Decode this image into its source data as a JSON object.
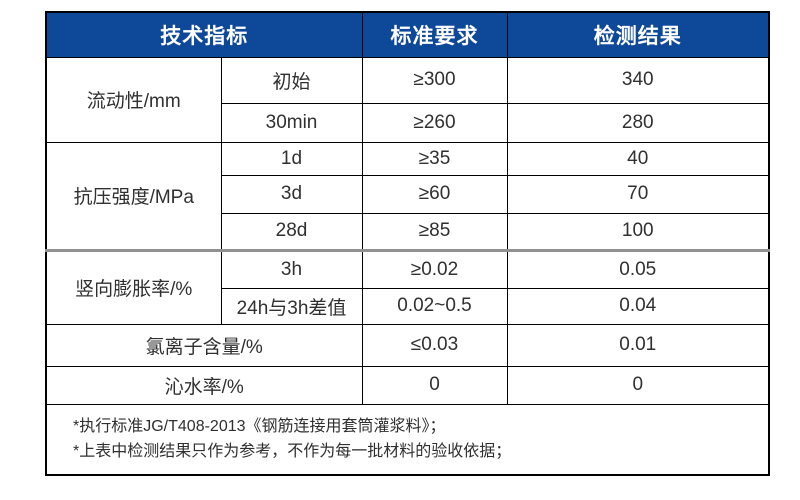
{
  "theme": {
    "header_bg": "#0d4899",
    "header_text": "#ffffff",
    "body_text": "#303030",
    "grid_border": "#000000",
    "section_divider": "#919191"
  },
  "table": {
    "headers": [
      {
        "label": "技术指标"
      },
      {
        "label": "标准要求"
      },
      {
        "label": "检测结果"
      }
    ],
    "groups": [
      {
        "name": "流动性/mm",
        "rows": [
          {
            "sub": "初始",
            "standard": "≥300",
            "result": "340"
          },
          {
            "sub": "30min",
            "standard": "≥260",
            "result": "280"
          }
        ]
      },
      {
        "name": "抗压强度/MPa",
        "rows": [
          {
            "sub": "1d",
            "standard": "≥35",
            "result": "40"
          },
          {
            "sub": "3d",
            "standard": "≥60",
            "result": "70"
          },
          {
            "sub": "28d",
            "standard": "≥85",
            "result": "100"
          }
        ]
      },
      {
        "name": "竖向膨胀率/%",
        "rows": [
          {
            "sub": "3h",
            "standard": "≥0.02",
            "result": "0.05"
          },
          {
            "sub": "24h与3h差值",
            "standard": "0.02~0.5",
            "result": "0.04"
          }
        ]
      }
    ],
    "full_rows": [
      {
        "name": "氯离子含量/%",
        "standard": "≤0.03",
        "result": "0.01"
      },
      {
        "name": "沁水率/%",
        "standard": "0",
        "result": "0"
      }
    ],
    "notes": [
      "*执行标准JG/T408-2013《钢筋连接用套筒灌浆料》；",
      "*上表中检测结果只作为参考，不作为每一批材料的验收依据；"
    ]
  }
}
